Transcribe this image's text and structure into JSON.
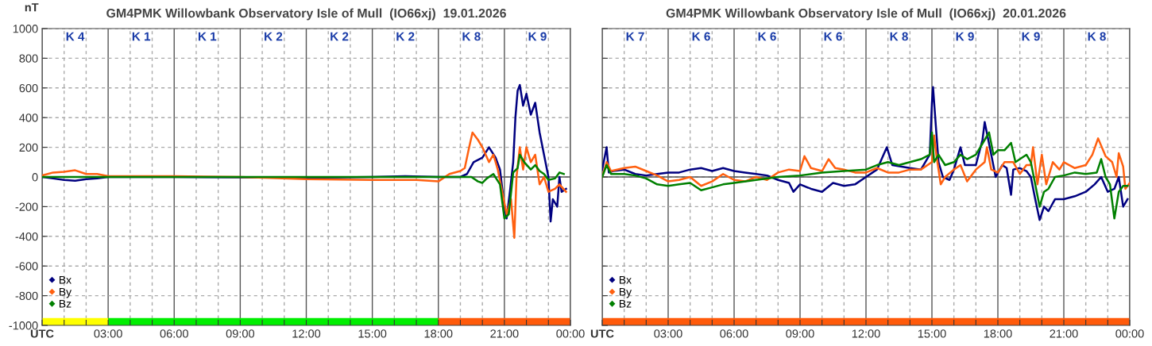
{
  "chart_data": [
    {
      "type": "line",
      "title": "GM4PMK Willowbank Observatory Isle of Mull  (IO66xj)  19.01.2026",
      "ylabel": "nT",
      "xlim": [
        0,
        24
      ],
      "xticks": [
        {
          "value": 0,
          "label": "UTC"
        },
        {
          "value": 1,
          "label": null
        },
        {
          "value": 2,
          "label": null
        },
        {
          "value": 3,
          "label": "03:00"
        },
        {
          "value": 4,
          "label": null
        },
        {
          "value": 5,
          "label": null
        },
        {
          "value": 6,
          "label": "06:00"
        },
        {
          "value": 7,
          "label": null
        },
        {
          "value": 8,
          "label": null
        },
        {
          "value": 9,
          "label": "09:00"
        },
        {
          "value": 10,
          "label": null
        },
        {
          "value": 11,
          "label": null
        },
        {
          "value": 12,
          "label": "12:00"
        },
        {
          "value": 13,
          "label": null
        },
        {
          "value": 14,
          "label": null
        },
        {
          "value": 15,
          "label": "15:00"
        },
        {
          "value": 16,
          "label": null
        },
        {
          "value": 17,
          "label": null
        },
        {
          "value": 18,
          "label": "18:00"
        },
        {
          "value": 19,
          "label": null
        },
        {
          "value": 20,
          "label": null
        },
        {
          "value": 21,
          "label": "21:00"
        },
        {
          "value": 22,
          "label": null
        },
        {
          "value": 23,
          "label": null
        },
        {
          "value": 24,
          "label": "00:00"
        }
      ],
      "ylim": [
        -1000,
        1000
      ],
      "yticks": [
        -1000,
        -800,
        -600,
        -400,
        -200,
        0,
        200,
        400,
        600,
        800,
        1000
      ],
      "grid": true,
      "legend": "bottom left",
      "series": [
        {
          "name": "Bx",
          "color": "#000080",
          "x": [
            0,
            0.5,
            1,
            1.5,
            2,
            2.5,
            3,
            6,
            9,
            12,
            15,
            16.5,
            18,
            19,
            19.3,
            19.6,
            20,
            20.3,
            20.6,
            20.8,
            21,
            21.1,
            21.25,
            21.4,
            21.5,
            21.6,
            21.7,
            21.85,
            22,
            22.2,
            22.4,
            22.6,
            22.8,
            23,
            23.1,
            23.2,
            23.4,
            23.5,
            23.6,
            23.8
          ],
          "values": [
            0,
            -10,
            -20,
            -25,
            -15,
            -10,
            0,
            0,
            -3,
            -5,
            0,
            5,
            0,
            0,
            20,
            100,
            130,
            200,
            130,
            50,
            -200,
            -280,
            -100,
            100,
            400,
            580,
            620,
            480,
            560,
            420,
            500,
            300,
            150,
            0,
            -300,
            -150,
            -200,
            0,
            -100,
            -80
          ]
        },
        {
          "name": "By",
          "color": "#ff6010",
          "x": [
            0,
            0.5,
            1,
            1.5,
            2,
            2.5,
            3,
            6,
            9,
            12,
            15,
            17,
            18,
            18.5,
            19,
            19.2,
            19.4,
            19.55,
            19.8,
            20,
            20.3,
            20.5,
            20.7,
            20.9,
            21.1,
            21.3,
            21.45,
            21.55,
            21.7,
            21.85,
            22,
            22.2,
            22.4,
            22.6,
            22.8,
            23,
            23.3,
            23.5,
            23.8
          ],
          "values": [
            10,
            30,
            35,
            45,
            20,
            20,
            5,
            5,
            0,
            -15,
            -20,
            -20,
            -30,
            20,
            40,
            60,
            200,
            300,
            250,
            200,
            100,
            150,
            50,
            -100,
            -250,
            -150,
            -410,
            0,
            200,
            50,
            200,
            100,
            150,
            -50,
            0,
            -100,
            -80,
            -50,
            -100
          ]
        },
        {
          "name": "Bz",
          "color": "#008000",
          "x": [
            0,
            18,
            19.5,
            19.8,
            20,
            20.2,
            20.5,
            20.8,
            21,
            21.2,
            21.4,
            21.6,
            21.7,
            21.9,
            22.2,
            22.4,
            22.6,
            22.8,
            23,
            23.3,
            23.5,
            23.7
          ],
          "values": [
            0,
            0,
            0,
            -30,
            -40,
            -10,
            20,
            -50,
            -280,
            -250,
            30,
            60,
            150,
            100,
            50,
            80,
            40,
            20,
            -20,
            -10,
            30,
            20
          ]
        }
      ],
      "annotations": [
        "K 4",
        "K 1",
        "K 1",
        "K 2",
        "K 2",
        "K 2",
        "K 8",
        "K 9"
      ]
    },
    {
      "type": "line",
      "title": "GM4PMK Willowbank Observatory Isle of Mull  (IO66xj)  20.01.2026",
      "tick_labels": "x",
      "xlim": [
        0,
        24
      ],
      "xticks": [
        {
          "value": 0,
          "label": "UTC"
        },
        {
          "value": 1,
          "label": null
        },
        {
          "value": 2,
          "label": null
        },
        {
          "value": 3,
          "label": "03:00"
        },
        {
          "value": 4,
          "label": null
        },
        {
          "value": 5,
          "label": null
        },
        {
          "value": 6,
          "label": "06:00"
        },
        {
          "value": 7,
          "label": null
        },
        {
          "value": 8,
          "label": null
        },
        {
          "value": 9,
          "label": "09:00"
        },
        {
          "value": 10,
          "label": null
        },
        {
          "value": 11,
          "label": null
        },
        {
          "value": 12,
          "label": "12:00"
        },
        {
          "value": 13,
          "label": null
        },
        {
          "value": 14,
          "label": null
        },
        {
          "value": 15,
          "label": "15:00"
        },
        {
          "value": 16,
          "label": null
        },
        {
          "value": 17,
          "label": null
        },
        {
          "value": 18,
          "label": "18:00"
        },
        {
          "value": 19,
          "label": null
        },
        {
          "value": 20,
          "label": null
        },
        {
          "value": 21,
          "label": "21:00"
        },
        {
          "value": 22,
          "label": null
        },
        {
          "value": 23,
          "label": null
        },
        {
          "value": 24,
          "label": "00:00"
        }
      ],
      "ylim": [
        -1000,
        1000
      ],
      "yticks": [
        -1000,
        -800,
        -600,
        -400,
        -200,
        0,
        200,
        400,
        600,
        800,
        1000
      ],
      "grid": true,
      "legend": "bottom left",
      "series": [
        {
          "name": "Bx",
          "color": "#000080",
          "x": [
            0,
            0.2,
            0.3,
            0.5,
            1,
            1.5,
            2,
            2.5,
            3,
            3.5,
            4,
            4.5,
            5,
            5.5,
            6,
            6.5,
            7,
            7.5,
            8,
            8.5,
            8.7,
            9,
            9.5,
            10,
            10.5,
            11,
            11.5,
            12,
            12.5,
            12.95,
            13.2,
            14,
            14.5,
            14.9,
            15,
            15.05,
            15.2,
            15.3,
            15.5,
            15.8,
            16,
            16.3,
            16.5,
            17,
            17.3,
            17.4,
            17.7,
            17.9,
            18.2,
            18.4,
            18.6,
            18.7,
            19,
            19.3,
            19.5,
            19.7,
            19.9,
            20.1,
            20.3,
            20.6,
            21,
            21.5,
            22,
            22.4,
            22.7,
            23,
            23.3,
            23.5,
            23.7,
            23.9
          ],
          "values": [
            50,
            200,
            30,
            40,
            50,
            20,
            10,
            20,
            30,
            30,
            50,
            60,
            40,
            60,
            40,
            30,
            20,
            10,
            -20,
            -40,
            -100,
            -50,
            -80,
            -100,
            -40,
            -60,
            -50,
            0,
            50,
            200,
            80,
            60,
            50,
            150,
            500,
            605,
            300,
            100,
            0,
            -20,
            50,
            200,
            80,
            80,
            250,
            370,
            150,
            0,
            80,
            60,
            -120,
            50,
            60,
            40,
            0,
            -150,
            -290,
            -200,
            -230,
            -150,
            -150,
            -130,
            -100,
            -50,
            0,
            -100,
            -80,
            0,
            -200,
            -150
          ]
        },
        {
          "name": "By",
          "color": "#ff6010",
          "x": [
            0,
            0.2,
            0.4,
            1,
            1.5,
            2,
            2.5,
            3,
            3.5,
            4,
            4.5,
            5,
            5.5,
            6,
            6.5,
            7,
            7.5,
            8,
            8.5,
            9,
            9.2,
            9.5,
            10,
            10.3,
            10.6,
            11,
            11.5,
            12,
            12.5,
            13,
            13.5,
            14,
            14.5,
            15,
            15.1,
            15.2,
            15.4,
            15.6,
            16,
            16.3,
            16.6,
            17,
            17.4,
            17.5,
            17.7,
            18,
            18.3,
            18.7,
            19,
            19.3,
            19.5,
            19.6,
            19.8,
            20,
            20.2,
            20.5,
            20.8,
            21,
            21.5,
            22,
            22.3,
            22.56,
            22.9,
            23.2,
            23.4,
            23.5,
            23.7,
            23.8,
            24
          ],
          "values": [
            0,
            100,
            40,
            60,
            70,
            40,
            10,
            -30,
            -20,
            0,
            -60,
            -30,
            20,
            -20,
            -30,
            0,
            -20,
            30,
            50,
            40,
            140,
            60,
            40,
            120,
            60,
            50,
            30,
            30,
            60,
            30,
            30,
            50,
            50,
            100,
            280,
            150,
            -50,
            0,
            50,
            80,
            -30,
            50,
            100,
            200,
            50,
            30,
            100,
            100,
            20,
            80,
            80,
            200,
            -50,
            150,
            -50,
            100,
            50,
            100,
            60,
            80,
            150,
            260,
            140,
            100,
            0,
            160,
            70,
            -80,
            -40
          ]
        },
        {
          "name": "Bz",
          "color": "#008000",
          "x": [
            0,
            0.2,
            0.4,
            1,
            1.5,
            2,
            2.5,
            3,
            3.5,
            4,
            4.5,
            5,
            5.5,
            6,
            7,
            8,
            9,
            10,
            11,
            12,
            12.5,
            13,
            13.5,
            14,
            14.5,
            14.9,
            15,
            15.1,
            15.3,
            15.6,
            16,
            16.3,
            16.6,
            17,
            17.4,
            17.6,
            17.8,
            18,
            18.3,
            18.6,
            18.8,
            19,
            19.3,
            19.5,
            19.7,
            19.9,
            20.1,
            20.3,
            20.6,
            21,
            21.5,
            22,
            22.5,
            22.7,
            22.9,
            23.1,
            23.3,
            23.5,
            23.7,
            23.9
          ],
          "values": [
            0,
            80,
            20,
            20,
            10,
            -10,
            -50,
            -60,
            -50,
            -40,
            -90,
            -70,
            -50,
            -40,
            -20,
            0,
            10,
            30,
            40,
            50,
            80,
            100,
            80,
            100,
            120,
            150,
            300,
            100,
            150,
            80,
            100,
            150,
            120,
            150,
            250,
            300,
            150,
            180,
            180,
            230,
            100,
            120,
            150,
            100,
            -50,
            -200,
            -100,
            -80,
            0,
            10,
            30,
            20,
            30,
            120,
            0,
            -50,
            -280,
            -100,
            -60,
            -60
          ]
        }
      ],
      "annotations": [
        "K 7",
        "K 6",
        "K 6",
        "K 6",
        "K 8",
        "K 9",
        "K 9",
        "K 8"
      ]
    }
  ]
}
